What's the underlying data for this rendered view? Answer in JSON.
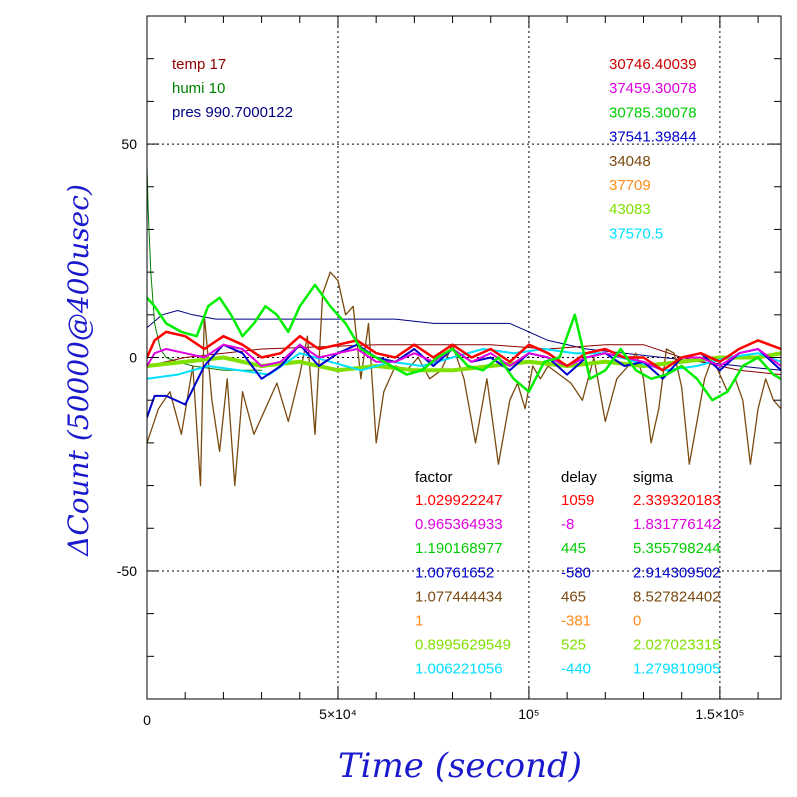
{
  "chart_data": {
    "type": "line",
    "xlabel": "Time (second)",
    "ylabel": "ΔCount (50000@400usec)",
    "xlim": [
      0,
      166000
    ],
    "ylim": [
      -80,
      80
    ],
    "x_ticks": [
      {
        "value": 0,
        "label": "0"
      },
      {
        "value": 50000,
        "label": "5×10⁴"
      },
      {
        "value": 100000,
        "label": "10⁵"
      },
      {
        "value": 150000,
        "label": "1.5×10⁵"
      }
    ],
    "y_ticks": [
      {
        "value": 50,
        "label": "50"
      },
      {
        "value": 0,
        "label": "0"
      },
      {
        "value": -50,
        "label": "-50"
      }
    ],
    "grid": true,
    "env": [
      {
        "text": "temp 17",
        "color": "#8b0000"
      },
      {
        "text": "humi 10",
        "color": "#008000"
      },
      {
        "text": "pres 990.7000122",
        "color": "#000080"
      }
    ],
    "values_list": [
      {
        "text": "30746.40039",
        "color": "#cc0000"
      },
      {
        "text": "37459.30078",
        "color": "#e000e0"
      },
      {
        "text": "30785.30078",
        "color": "#00cc00"
      },
      {
        "text": "37541.39844",
        "color": "#0000cc"
      },
      {
        "text": "34048",
        "color": "#7a4a10"
      },
      {
        "text": "37709",
        "color": "#ff8c1a"
      },
      {
        "text": "43083",
        "color": "#80e000"
      },
      {
        "text": "37570.5",
        "color": "#00e0ff"
      }
    ],
    "table": {
      "headers": [
        "factor",
        "delay",
        "sigma"
      ],
      "rows": [
        {
          "factor": "1.029922247",
          "delay": "1059",
          "sigma": "2.339320183",
          "color": "#ff0000"
        },
        {
          "factor": "0.965364933",
          "delay": "-8",
          "sigma": "1.831776142",
          "color": "#e000e0"
        },
        {
          "factor": "1.190168977",
          "delay": "445",
          "sigma": "5.355798244",
          "color": "#00cc00"
        },
        {
          "factor": "1.00761652",
          "delay": "-580",
          "sigma": "2.914309502",
          "color": "#0000cc"
        },
        {
          "factor": "1.077444434",
          "delay": "465",
          "sigma": "8.527824402",
          "color": "#7a4a10"
        },
        {
          "factor": "1",
          "delay": "-381",
          "sigma": "0",
          "color": "#ff8c1a"
        },
        {
          "factor": "0.8995629549",
          "delay": "525",
          "sigma": "2.027023315",
          "color": "#80e000"
        },
        {
          "factor": "1.006221056",
          "delay": "-440",
          "sigma": "1.279810905",
          "color": "#00e0ff"
        }
      ]
    },
    "series": [
      {
        "color": "#000080",
        "width": 1,
        "x": [
          0,
          4000,
          8000,
          12000,
          18000,
          25000,
          35000,
          45000,
          55000,
          65000,
          75000,
          85000,
          95000,
          105000,
          115000,
          125000,
          135000,
          145000,
          155000,
          166000
        ],
        "y": [
          7,
          10,
          11,
          10,
          9,
          9,
          9,
          9,
          9,
          9,
          8,
          8,
          8,
          4,
          2,
          1,
          0,
          -1,
          -2,
          -3
        ]
      },
      {
        "color": "#008000",
        "width": 1,
        "x": [
          0,
          300,
          1000,
          2000,
          3500,
          5000,
          8000,
          12000,
          20000,
          30000
        ],
        "y": [
          45,
          35,
          20,
          8,
          2,
          0,
          -1,
          -2,
          -3,
          -3
        ]
      },
      {
        "color": "#8b0000",
        "width": 1,
        "x": [
          0,
          10000,
          30000,
          60000,
          90000,
          105000,
          120000,
          130000,
          140000,
          155000,
          166000
        ],
        "y": [
          -2,
          0,
          2,
          3,
          3,
          2,
          3,
          3,
          0,
          -3,
          -4
        ]
      },
      {
        "color": "#7a4a10",
        "width": 1.3,
        "x": [
          0,
          3000,
          6000,
          9000,
          12000,
          14000,
          15000,
          17000,
          19000,
          21000,
          23000,
          25000,
          28000,
          31000,
          34000,
          37000,
          40000,
          42000,
          44000,
          46000,
          48000,
          50000,
          52000,
          54000,
          56000,
          58000,
          60000,
          62000,
          65000,
          68000,
          71000,
          74000,
          77000,
          80000,
          83000,
          86000,
          89000,
          92000,
          95000,
          97000,
          99000,
          101000,
          103000,
          105000,
          108000,
          111000,
          114000,
          117000,
          120000,
          123000,
          126000,
          128000,
          130000,
          132000,
          134000,
          136000,
          138000,
          140000,
          142000,
          144000,
          146000,
          148000,
          150000,
          152000,
          154000,
          156000,
          158000,
          160000,
          162000,
          164000,
          166000
        ],
        "y": [
          -20,
          -12,
          -8,
          -18,
          -2,
          -30,
          10,
          -10,
          -22,
          -5,
          -30,
          -8,
          -18,
          -12,
          -6,
          -15,
          -4,
          5,
          -18,
          15,
          20,
          18,
          10,
          12,
          -5,
          8,
          -20,
          -8,
          -2,
          -3,
          0,
          -5,
          -3,
          3,
          -5,
          -20,
          -5,
          -25,
          -10,
          -6,
          -12,
          -2,
          -5,
          -2,
          -4,
          -6,
          -10,
          0,
          -15,
          -5,
          -2,
          1,
          -5,
          -20,
          -12,
          2,
          1,
          -7,
          -25,
          -15,
          -5,
          0,
          -4,
          -8,
          -5,
          -10,
          -25,
          -12,
          -5,
          -10,
          -12
        ]
      },
      {
        "color": "#80e000",
        "width": 4,
        "x": [
          0,
          10000,
          20000,
          30000,
          40000,
          50000,
          60000,
          70000,
          80000,
          90000,
          100000,
          110000,
          120000,
          130000,
          140000,
          150000,
          160000,
          166000
        ],
        "y": [
          -2,
          -1,
          0,
          -2,
          -1,
          -3,
          -2,
          -3,
          -3,
          -2,
          -1,
          -2,
          -1,
          -2,
          -1,
          0,
          0,
          1
        ]
      },
      {
        "color": "#00e0ff",
        "width": 2,
        "x": [
          0,
          8000,
          16000,
          24000,
          32000,
          40000,
          48000,
          56000,
          64000,
          72000,
          80000,
          88000,
          96000,
          104000,
          112000,
          120000,
          128000,
          136000,
          144000,
          152000,
          160000,
          166000
        ],
        "y": [
          -5,
          -4,
          -2,
          -3,
          -4,
          1,
          -1,
          -3,
          -1,
          -2,
          0,
          2,
          1,
          2,
          1,
          1,
          -1,
          -3,
          -2,
          0,
          1,
          -1
        ]
      },
      {
        "color": "#0000cc",
        "width": 2,
        "x": [
          0,
          2000,
          5000,
          10000,
          15000,
          20000,
          25000,
          30000,
          35000,
          40000,
          45000,
          50000,
          55000,
          60000,
          65000,
          70000,
          75000,
          80000,
          85000,
          90000,
          95000,
          100000,
          105000,
          110000,
          115000,
          120000,
          125000,
          130000,
          135000,
          140000,
          145000,
          150000,
          155000,
          160000,
          166000
        ],
        "y": [
          -14,
          -9,
          -9,
          -11,
          -2,
          3,
          1,
          -5,
          -2,
          3,
          -2,
          1,
          3,
          0,
          -1,
          2,
          -2,
          2,
          -1,
          0,
          -3,
          1,
          0,
          -4,
          0,
          1,
          -2,
          -1,
          -5,
          0,
          1,
          -3,
          1,
          2,
          -3
        ]
      },
      {
        "color": "#e000e0",
        "width": 2,
        "x": [
          0,
          2000,
          5000,
          10000,
          15000,
          20000,
          25000,
          30000,
          35000,
          40000,
          45000,
          50000,
          55000,
          60000,
          65000,
          70000,
          75000,
          80000,
          85000,
          90000,
          95000,
          100000,
          105000,
          110000,
          115000,
          120000,
          125000,
          130000,
          135000,
          140000,
          145000,
          150000,
          155000,
          160000,
          166000
        ],
        "y": [
          -2,
          1,
          2,
          1,
          0,
          3,
          2,
          -2,
          -1,
          3,
          0,
          1,
          2,
          -1,
          -1,
          1,
          -1,
          2,
          -1,
          1,
          -2,
          1,
          0,
          -2,
          0,
          1,
          0,
          -1,
          -3,
          0,
          0,
          -2,
          1,
          2,
          -2
        ]
      },
      {
        "color": "#ff0000",
        "width": 2.5,
        "x": [
          0,
          2000,
          5000,
          10000,
          15000,
          20000,
          25000,
          30000,
          35000,
          40000,
          45000,
          50000,
          55000,
          60000,
          65000,
          70000,
          75000,
          80000,
          85000,
          90000,
          95000,
          100000,
          105000,
          110000,
          115000,
          120000,
          125000,
          130000,
          135000,
          140000,
          145000,
          150000,
          155000,
          160000,
          166000
        ],
        "y": [
          0,
          4,
          6,
          5,
          2,
          5,
          3,
          0,
          1,
          5,
          2,
          3,
          4,
          1,
          0,
          3,
          0,
          3,
          0,
          2,
          -1,
          3,
          1,
          -2,
          1,
          2,
          0,
          0,
          -3,
          0,
          1,
          -1,
          2,
          4,
          2
        ]
      },
      {
        "color": "#00ee00",
        "width": 2.5,
        "x": [
          0,
          2000,
          5000,
          9000,
          13000,
          16000,
          19000,
          22000,
          25000,
          28000,
          31000,
          34000,
          37000,
          40000,
          44000,
          48000,
          52000,
          56000,
          60000,
          64000,
          68000,
          72000,
          76000,
          80000,
          84000,
          88000,
          92000,
          96000,
          100000,
          104000,
          108000,
          112000,
          116000,
          120000,
          124000,
          128000,
          132000,
          136000,
          140000,
          144000,
          148000,
          152000,
          156000,
          160000,
          164000,
          166000
        ],
        "y": [
          14,
          12,
          8,
          6,
          5,
          12,
          14,
          10,
          5,
          8,
          12,
          10,
          6,
          12,
          17,
          12,
          8,
          2,
          0,
          -2,
          -4,
          -3,
          0,
          2,
          -2,
          -3,
          0,
          -5,
          -8,
          -1,
          0,
          10,
          -5,
          -3,
          2,
          -3,
          -5,
          -4,
          -2,
          -5,
          -10,
          -8,
          -2,
          0,
          -4,
          -5
        ]
      }
    ]
  }
}
